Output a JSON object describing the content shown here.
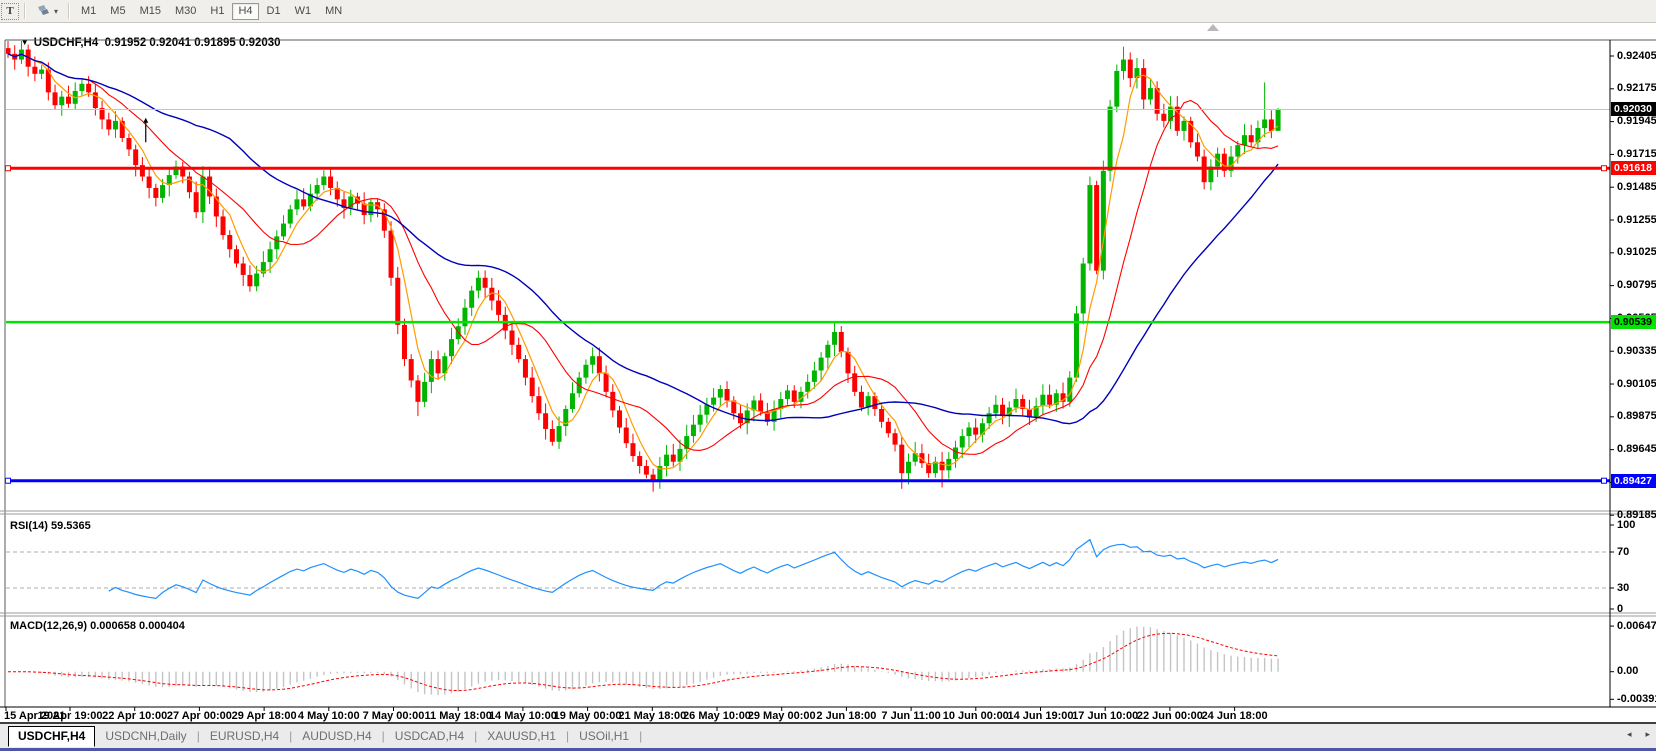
{
  "toolbar": {
    "text_tool_label": "T",
    "timeframes": [
      "M1",
      "M5",
      "M15",
      "M30",
      "H1",
      "H4",
      "D1",
      "W1",
      "MN"
    ],
    "active_timeframe": "H4"
  },
  "chart": {
    "symbol": "USDCHF,H4",
    "open": "0.91952",
    "high": "0.92041",
    "low": "0.91895",
    "close": "0.92030"
  },
  "indicators": {
    "rsi": {
      "label": "RSI(14) 59.5365",
      "period": 14,
      "value": "59.5365",
      "axis_labels": [
        {
          "text": "100",
          "value": 100
        },
        {
          "text": "70",
          "value": 70
        },
        {
          "text": "30",
          "value": 30
        },
        {
          "text": "0",
          "value": 0
        }
      ],
      "overbought": 70,
      "oversold": 30,
      "line_color": "#1E90FF"
    },
    "macd": {
      "label": "MACD(12,26,9) 0.000658 0.000404",
      "fast": 12,
      "slow": 26,
      "signal": 9,
      "values": [
        "0.000658",
        "0.000404"
      ],
      "axis_labels": [
        {
          "text": "0.00647",
          "value": 0.00647
        },
        {
          "text": "0.00",
          "value": 0
        },
        {
          "text": "-0.003916",
          "value": -0.003916
        }
      ],
      "histogram_color": "#C4C4C4",
      "signal_color": "#FF0000"
    }
  },
  "price_axis": {
    "ticks": [
      "0.92405",
      "0.92175",
      "0.91945",
      "0.91715",
      "0.91485",
      "0.91255",
      "0.91025",
      "0.90795",
      "0.90565",
      "0.90335",
      "0.90105",
      "0.89875",
      "0.89645",
      "0.89415",
      "0.89185"
    ],
    "current_price": {
      "label": "0.92030",
      "value": 0.9203,
      "bg": "#000000",
      "fg": "#FFFFFF"
    }
  },
  "time_axis": {
    "labels": [
      "15 Apr 2021",
      "19 Apr 19:00",
      "22 Apr 10:00",
      "27 Apr 00:00",
      "29 Apr 18:00",
      "4 May 10:00",
      "7 May 00:00",
      "11 May 18:00",
      "14 May 10:00",
      "19 May 00:00",
      "21 May 18:00",
      "26 May 10:00",
      "29 May 00:00",
      "2 Jun 18:00",
      "7 Jun 11:00",
      "10 Jun 00:00",
      "14 Jun 19:00",
      "17 Jun 10:00",
      "22 Jun 00:00",
      "24 Jun 18:00"
    ]
  },
  "tabs": {
    "items": [
      {
        "label": "USDCHF,H4",
        "active": true
      },
      {
        "label": "USDCNH,Daily",
        "active": false
      },
      {
        "label": "EURUSD,H4",
        "active": false
      },
      {
        "label": "AUDUSD,H4",
        "active": false
      },
      {
        "label": "USDCAD,H4",
        "active": false
      },
      {
        "label": "XAUUSD,H1",
        "active": false
      },
      {
        "label": "USOil,H1",
        "active": false
      }
    ],
    "scroll_left": "◂",
    "scroll_right": "▸"
  },
  "chart_data": {
    "type": "candlestick",
    "title": "USDCHF,H4",
    "bull_color": "#00B400",
    "bear_color": "#FF0000",
    "first_open": 0.9246,
    "closes": [
      0.9242,
      0.9238,
      0.9245,
      0.9233,
      0.9228,
      0.9231,
      0.9215,
      0.9206,
      0.9212,
      0.9207,
      0.9216,
      0.9221,
      0.9215,
      0.9204,
      0.9196,
      0.9189,
      0.9195,
      0.9183,
      0.9175,
      0.9164,
      0.9156,
      0.9148,
      0.9141,
      0.915,
      0.9157,
      0.9163,
      0.9156,
      0.9145,
      0.9131,
      0.9156,
      0.9142,
      0.9128,
      0.9115,
      0.9105,
      0.9095,
      0.9087,
      0.9079,
      0.9088,
      0.9096,
      0.9105,
      0.9114,
      0.9123,
      0.9133,
      0.914,
      0.9135,
      0.9144,
      0.915,
      0.9156,
      0.9148,
      0.914,
      0.9134,
      0.9142,
      0.9137,
      0.9129,
      0.9138,
      0.9133,
      0.9118,
      0.9085,
      0.9052,
      0.9028,
      0.9013,
      0.8998,
      0.9012,
      0.9028,
      0.9018,
      0.903,
      0.9042,
      0.9051,
      0.9064,
      0.9076,
      0.9085,
      0.9078,
      0.9069,
      0.9059,
      0.9048,
      0.9038,
      0.9028,
      0.9015,
      0.9002,
      0.899,
      0.8979,
      0.897,
      0.8981,
      0.8993,
      0.9004,
      0.9015,
      0.9024,
      0.903,
      0.9018,
      0.9005,
      0.8992,
      0.898,
      0.8969,
      0.896,
      0.8953,
      0.8947,
      0.8942,
      0.8953,
      0.8961,
      0.8956,
      0.8965,
      0.8974,
      0.8982,
      0.8989,
      0.8996,
      0.9001,
      0.9007,
      0.8999,
      0.899,
      0.8983,
      0.8992,
      0.8999,
      0.8991,
      0.8984,
      0.8993,
      0.9,
      0.9006,
      0.8998,
      0.9005,
      0.9012,
      0.902,
      0.9029,
      0.9038,
      0.9047,
      0.9033,
      0.9018,
      0.9005,
      0.8994,
      0.9002,
      0.8993,
      0.8984,
      0.8976,
      0.8968,
      0.8948,
      0.8956,
      0.8962,
      0.8955,
      0.8948,
      0.8956,
      0.895,
      0.8958,
      0.8966,
      0.8974,
      0.898,
      0.8975,
      0.8983,
      0.899,
      0.8996,
      0.8988,
      0.8994,
      0.9,
      0.8993,
      0.8987,
      0.8995,
      0.9003,
      0.8996,
      0.9004,
      0.8998,
      0.9015,
      0.906,
      0.9095,
      0.915,
      0.909,
      0.916,
      0.9205,
      0.923,
      0.9238,
      0.9225,
      0.9232,
      0.921,
      0.9218,
      0.92,
      0.9195,
      0.9205,
      0.9188,
      0.9195,
      0.918,
      0.917,
      0.9152,
      0.9163,
      0.9172,
      0.916,
      0.917,
      0.9178,
      0.9185,
      0.918,
      0.919,
      0.9196,
      0.9188,
      0.9203
    ],
    "wick_overrides": {
      "2": [
        0.9251,
        null
      ],
      "22": [
        null,
        0.9135
      ],
      "48": [
        0.91615,
        null
      ],
      "61": [
        null,
        0.8988
      ],
      "70": [
        0.909,
        null
      ],
      "96": [
        null,
        0.8935
      ],
      "123": [
        0.9054,
        null
      ],
      "133": [
        null,
        0.8937
      ],
      "139": [
        null,
        0.8938
      ],
      "161": [
        0.9156,
        null
      ],
      "166": [
        0.9247,
        null
      ],
      "167": [
        0.9243,
        null
      ],
      "178": [
        null,
        0.9147
      ],
      "187": [
        0.9222,
        null
      ],
      "189": [
        0.92041,
        0.91895
      ]
    },
    "moving_averages": [
      {
        "name": "fast-ma",
        "period": 5,
        "color": "#FF9C00",
        "width": 1.2
      },
      {
        "name": "medium-ma",
        "period": 13,
        "color": "#FF0000",
        "width": 1.1
      },
      {
        "name": "slow-ma",
        "period": 34,
        "color": "#0000BB",
        "width": 1.4
      }
    ],
    "horizontal_levels": [
      {
        "name": "resistance-line",
        "price": 0.91618,
        "label": "0.91618",
        "color": "#FF0000",
        "text_color": "#FFFFFF",
        "width": 3,
        "selected": true
      },
      {
        "name": "mid-support-line",
        "price": 0.90539,
        "label": "0.90539",
        "color": "#00E400",
        "text_color": "#000000",
        "width": 2.5,
        "selected": false
      },
      {
        "name": "support-line",
        "price": 0.89427,
        "label": "0.89427",
        "color": "#0000FF",
        "text_color": "#FFFFFF",
        "width": 3,
        "selected": true
      }
    ],
    "annotations": [
      {
        "type": "up-arrow",
        "index": 20.5,
        "price_bottom": 0.918,
        "price_top": 0.91965,
        "color": "#000000"
      }
    ],
    "ylim": [
      0.89185,
      0.92405
    ],
    "grid": false
  }
}
